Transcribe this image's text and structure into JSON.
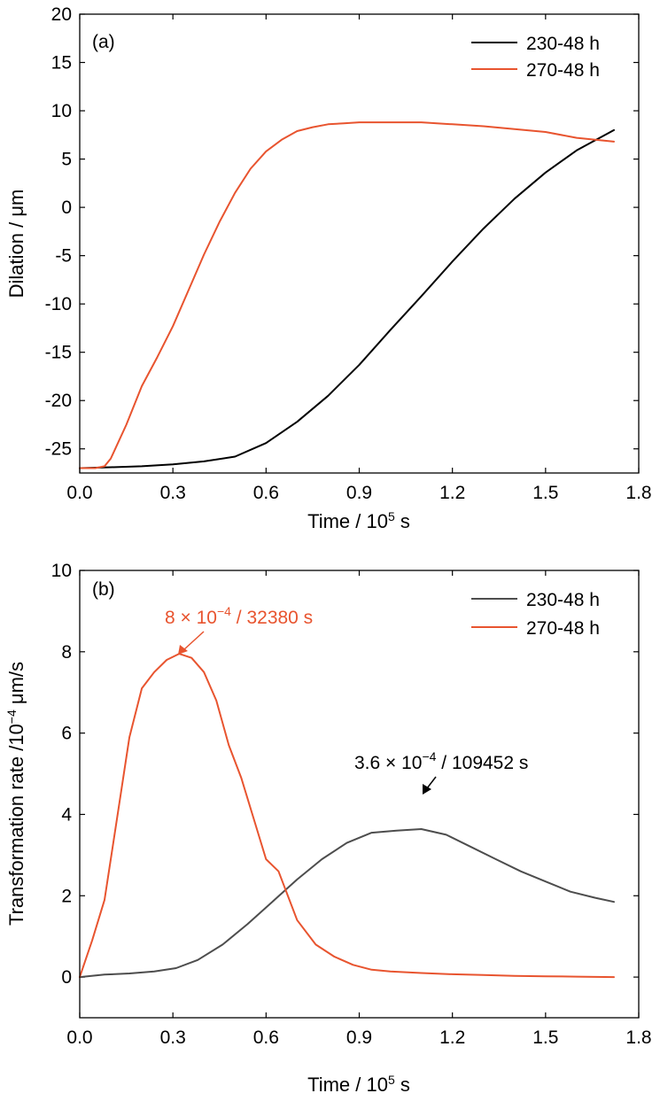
{
  "colors": {
    "series_230_a": "#000000",
    "series_230_b": "#4d4d4d",
    "series_270": "#e8542f",
    "axis": "#000000"
  },
  "chart_data": [
    {
      "type": "line",
      "panel_label": "(a)",
      "xlabel_prefix": "Time / 10",
      "xlabel_exp": "5",
      "xlabel_suffix": " s",
      "ylabel": "Dilation / μm",
      "xlim": [
        0.0,
        1.8
      ],
      "ylim": [
        -27.5,
        20
      ],
      "xticks": [
        0.0,
        0.3,
        0.6,
        0.9,
        1.2,
        1.5,
        1.8
      ],
      "xtick_labels": [
        "0.0",
        "0.3",
        "0.6",
        "0.9",
        "1.2",
        "1.5",
        "1.8"
      ],
      "yticks": [
        20,
        15,
        10,
        5,
        0,
        -5,
        -10,
        -15,
        -20,
        -25
      ],
      "ytick_labels": [
        "20",
        "15",
        "10",
        "5",
        "0",
        "-5",
        "-10",
        "-15",
        "-20",
        "-25"
      ],
      "grid": false,
      "legend_position": "top-right",
      "series": [
        {
          "name": "230-48 h",
          "color": "#000000",
          "x": [
            0.0,
            0.1,
            0.2,
            0.3,
            0.4,
            0.5,
            0.6,
            0.7,
            0.8,
            0.9,
            1.0,
            1.1,
            1.2,
            1.3,
            1.4,
            1.5,
            1.6,
            1.72
          ],
          "y": [
            -27.0,
            -26.9,
            -26.8,
            -26.6,
            -26.3,
            -25.8,
            -24.4,
            -22.2,
            -19.5,
            -16.3,
            -12.7,
            -9.2,
            -5.6,
            -2.2,
            0.9,
            3.6,
            5.9,
            8.0
          ]
        },
        {
          "name": "270-48 h",
          "color": "#e8542f",
          "x": [
            0.0,
            0.05,
            0.08,
            0.1,
            0.15,
            0.2,
            0.25,
            0.3,
            0.35,
            0.4,
            0.45,
            0.5,
            0.55,
            0.6,
            0.65,
            0.7,
            0.75,
            0.8,
            0.85,
            0.9,
            1.0,
            1.1,
            1.2,
            1.3,
            1.4,
            1.5,
            1.6,
            1.72
          ],
          "y": [
            -27.0,
            -27.0,
            -26.8,
            -26.0,
            -22.5,
            -18.5,
            -15.5,
            -12.3,
            -8.6,
            -4.9,
            -1.5,
            1.5,
            4.0,
            5.8,
            7.0,
            7.9,
            8.3,
            8.6,
            8.7,
            8.8,
            8.8,
            8.8,
            8.6,
            8.4,
            8.1,
            7.8,
            7.2,
            6.8
          ]
        }
      ]
    },
    {
      "type": "line",
      "panel_label": "(b)",
      "xlabel_prefix": "Time / 10",
      "xlabel_exp": "5",
      "xlabel_suffix": " s",
      "ylabel_prefix": "Transformation rate /10",
      "ylabel_exp": "−4",
      "ylabel_suffix": " μm/s",
      "xlim": [
        0.0,
        1.8
      ],
      "ylim": [
        -1,
        10
      ],
      "xticks": [
        0.0,
        0.3,
        0.6,
        0.9,
        1.2,
        1.5,
        1.8
      ],
      "xtick_labels": [
        "0.0",
        "0.3",
        "0.6",
        "0.9",
        "1.2",
        "1.5",
        "1.8"
      ],
      "yticks": [
        10,
        8,
        6,
        4,
        2,
        0
      ],
      "ytick_labels": [
        "10",
        "8",
        "6",
        "4",
        "2",
        "0"
      ],
      "grid": false,
      "legend_position": "top-right",
      "series": [
        {
          "name": "230-48 h",
          "color": "#4d4d4d",
          "x": [
            0.0,
            0.08,
            0.16,
            0.24,
            0.31,
            0.38,
            0.46,
            0.54,
            0.62,
            0.7,
            0.78,
            0.86,
            0.94,
            1.02,
            1.1,
            1.18,
            1.26,
            1.34,
            1.42,
            1.5,
            1.58,
            1.66,
            1.72
          ],
          "y": [
            0.0,
            0.06,
            0.09,
            0.14,
            0.22,
            0.42,
            0.8,
            1.3,
            1.85,
            2.4,
            2.9,
            3.3,
            3.55,
            3.6,
            3.64,
            3.5,
            3.2,
            2.9,
            2.6,
            2.35,
            2.1,
            1.95,
            1.85
          ]
        },
        {
          "name": "270-48 h",
          "color": "#e8542f",
          "x": [
            0.0,
            0.04,
            0.08,
            0.12,
            0.16,
            0.2,
            0.24,
            0.28,
            0.32,
            0.36,
            0.4,
            0.44,
            0.48,
            0.52,
            0.56,
            0.6,
            0.64,
            0.7,
            0.76,
            0.82,
            0.88,
            0.94,
            1.0,
            1.1,
            1.2,
            1.3,
            1.4,
            1.5,
            1.6,
            1.72
          ],
          "y": [
            0.0,
            0.9,
            1.9,
            3.9,
            5.9,
            7.1,
            7.5,
            7.8,
            7.95,
            7.85,
            7.5,
            6.8,
            5.7,
            4.9,
            3.9,
            2.9,
            2.6,
            1.4,
            0.8,
            0.5,
            0.3,
            0.18,
            0.14,
            0.1,
            0.07,
            0.05,
            0.03,
            0.02,
            0.01,
            0.0
          ]
        }
      ],
      "annotations": [
        {
          "text_prefix": "8 × 10",
          "text_exp": "−4",
          "text_suffix": " / 32380 s",
          "color": "#e8542f",
          "target_x": 0.3238,
          "target_y": 7.95
        },
        {
          "text_prefix": "3.6 × 10",
          "text_exp": "−4",
          "text_suffix": " / 109452 s",
          "color": "#000000",
          "target_x": 1.09452,
          "target_y": 3.64
        }
      ]
    }
  ]
}
